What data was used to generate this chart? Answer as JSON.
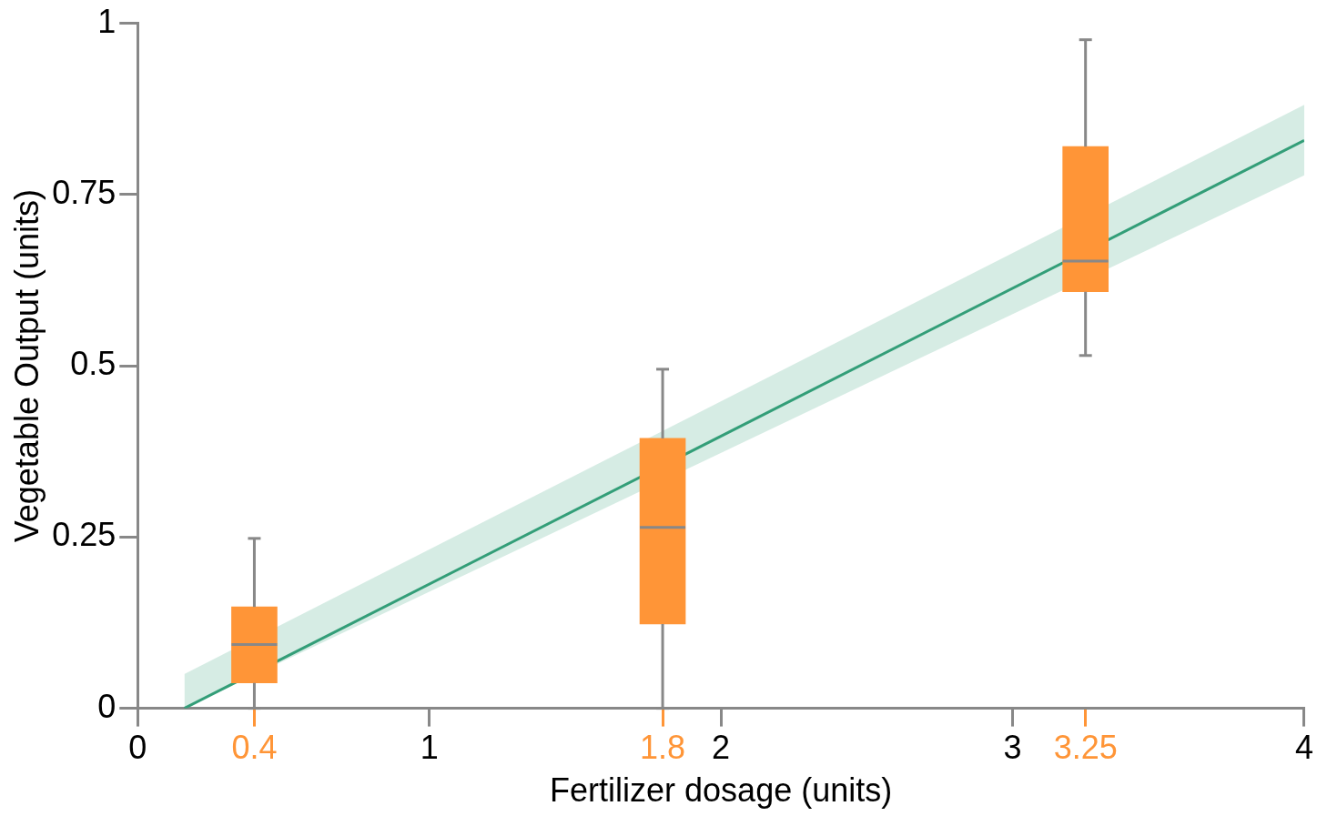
{
  "chart_data": {
    "type": "box",
    "xlabel": "Fertilizer dosage (units)",
    "ylabel": "Vegetable Output (units)",
    "xlim": [
      0,
      4
    ],
    "xticks": [
      0,
      0.4,
      1,
      1.8,
      2,
      3,
      3.25,
      4
    ],
    "ylim": [
      0,
      1
    ],
    "yticks": [
      0,
      0.25,
      0.5,
      0.75,
      1
    ],
    "series": [
      {
        "color": "#ff9537",
        "x": [
          0.4,
          1.8,
          3.25
        ],
        "boxes": [
          {
            "low": 0,
            "q1": 0.037,
            "median": 0.093,
            "q3": 0.148,
            "high": 0.248
          },
          {
            "low": 0,
            "q1": 0.123,
            "median": 0.264,
            "q3": 0.394,
            "high": 0.495
          },
          {
            "low": 0.515,
            "q1": 0.608,
            "median": 0.653,
            "q3": 0.82,
            "high": 0.976
          }
        ]
      },
      {
        "type": "line",
        "color": "#339e78",
        "x": [
          0.16,
          4
        ],
        "values": [
          0,
          0.829
        ],
        "lower": [
          0,
          0.778
        ],
        "upper": [
          0.05,
          0.881
        ]
      }
    ]
  }
}
